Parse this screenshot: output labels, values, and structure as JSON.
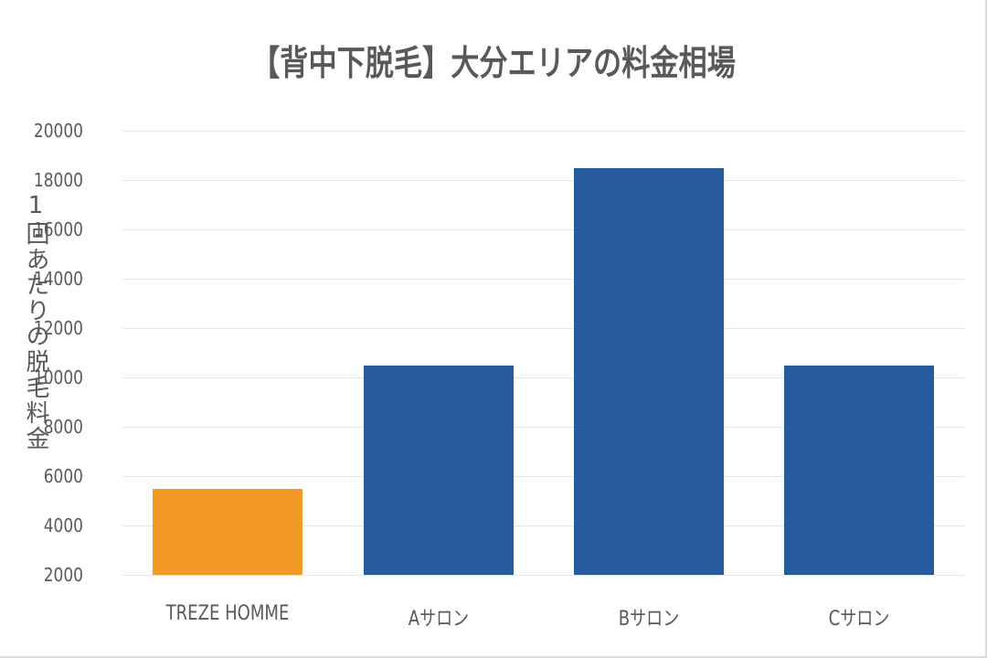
{
  "chart_data": {
    "type": "bar",
    "title": "【背中下脱毛】大分エリアの料金相場",
    "xlabel": "",
    "ylabel": "1回あたりの脱毛料金",
    "categories": [
      "TREZE HOMME",
      "Aサロン",
      "Bサロン",
      "Cサロン"
    ],
    "values": [
      5500,
      10500,
      18500,
      10500
    ],
    "bar_colors": [
      "#F39A26",
      "#265B9E",
      "#265B9E",
      "#265B9E"
    ],
    "ylim": [
      2000,
      20000
    ],
    "yticks": [
      2000,
      4000,
      6000,
      8000,
      10000,
      12000,
      14000,
      16000,
      18000,
      20000
    ],
    "grid": true,
    "legend": "none"
  },
  "chart": {
    "title": "【背中下脱毛】大分エリアの料金相場",
    "ylabel": "1回あたりの脱毛料金",
    "yticks": [
      "20000",
      "18000",
      "16000",
      "14000",
      "12000",
      "10000",
      "8000",
      "6000",
      "4000",
      "2000"
    ],
    "categories": [
      "TREZE HOMME",
      "Aサロン",
      "Bサロン",
      "Cサロン"
    ]
  }
}
